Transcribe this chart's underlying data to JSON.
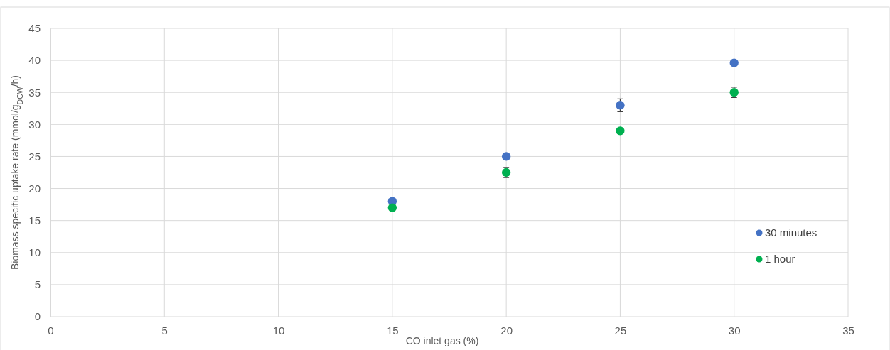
{
  "chart_data": {
    "type": "scatter",
    "xlabel": "CO inlet gas (%)",
    "ylabel": "Biomass specific uptake rate (mmol/g$_{DCW}$/h)",
    "x": [
      15,
      20,
      25,
      30
    ],
    "series": [
      {
        "name": "30 minutes",
        "color": "#4472c4",
        "values": [
          18,
          25,
          33,
          39.6
        ],
        "errors": [
          null,
          null,
          1,
          null
        ]
      },
      {
        "name": "1 hour",
        "color": "#00b050",
        "values": [
          17,
          22.5,
          29,
          35
        ],
        "errors": [
          null,
          0.8,
          null,
          0.8
        ]
      }
    ],
    "xlim": [
      0,
      35
    ],
    "xticks": [
      0,
      5,
      10,
      15,
      20,
      25,
      30,
      35
    ],
    "ylim": [
      0,
      45
    ],
    "yticks": [
      0,
      5,
      10,
      15,
      20,
      25,
      30,
      35,
      40,
      45
    ],
    "grid": true,
    "legend": "bottom right",
    "marker": "circle"
  }
}
